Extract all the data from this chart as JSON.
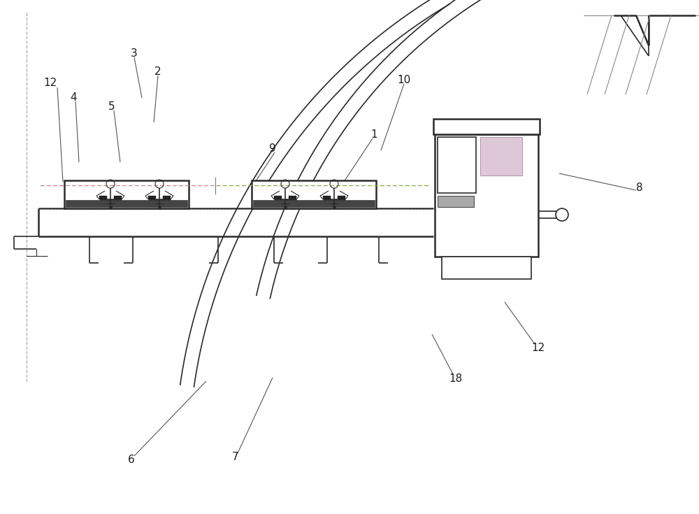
{
  "bg": "#ffffff",
  "lc": "#2a2a2a",
  "gray": "#888888",
  "lw_main": 1.2,
  "lw_thick": 1.8,
  "lw_thin": 0.8
}
